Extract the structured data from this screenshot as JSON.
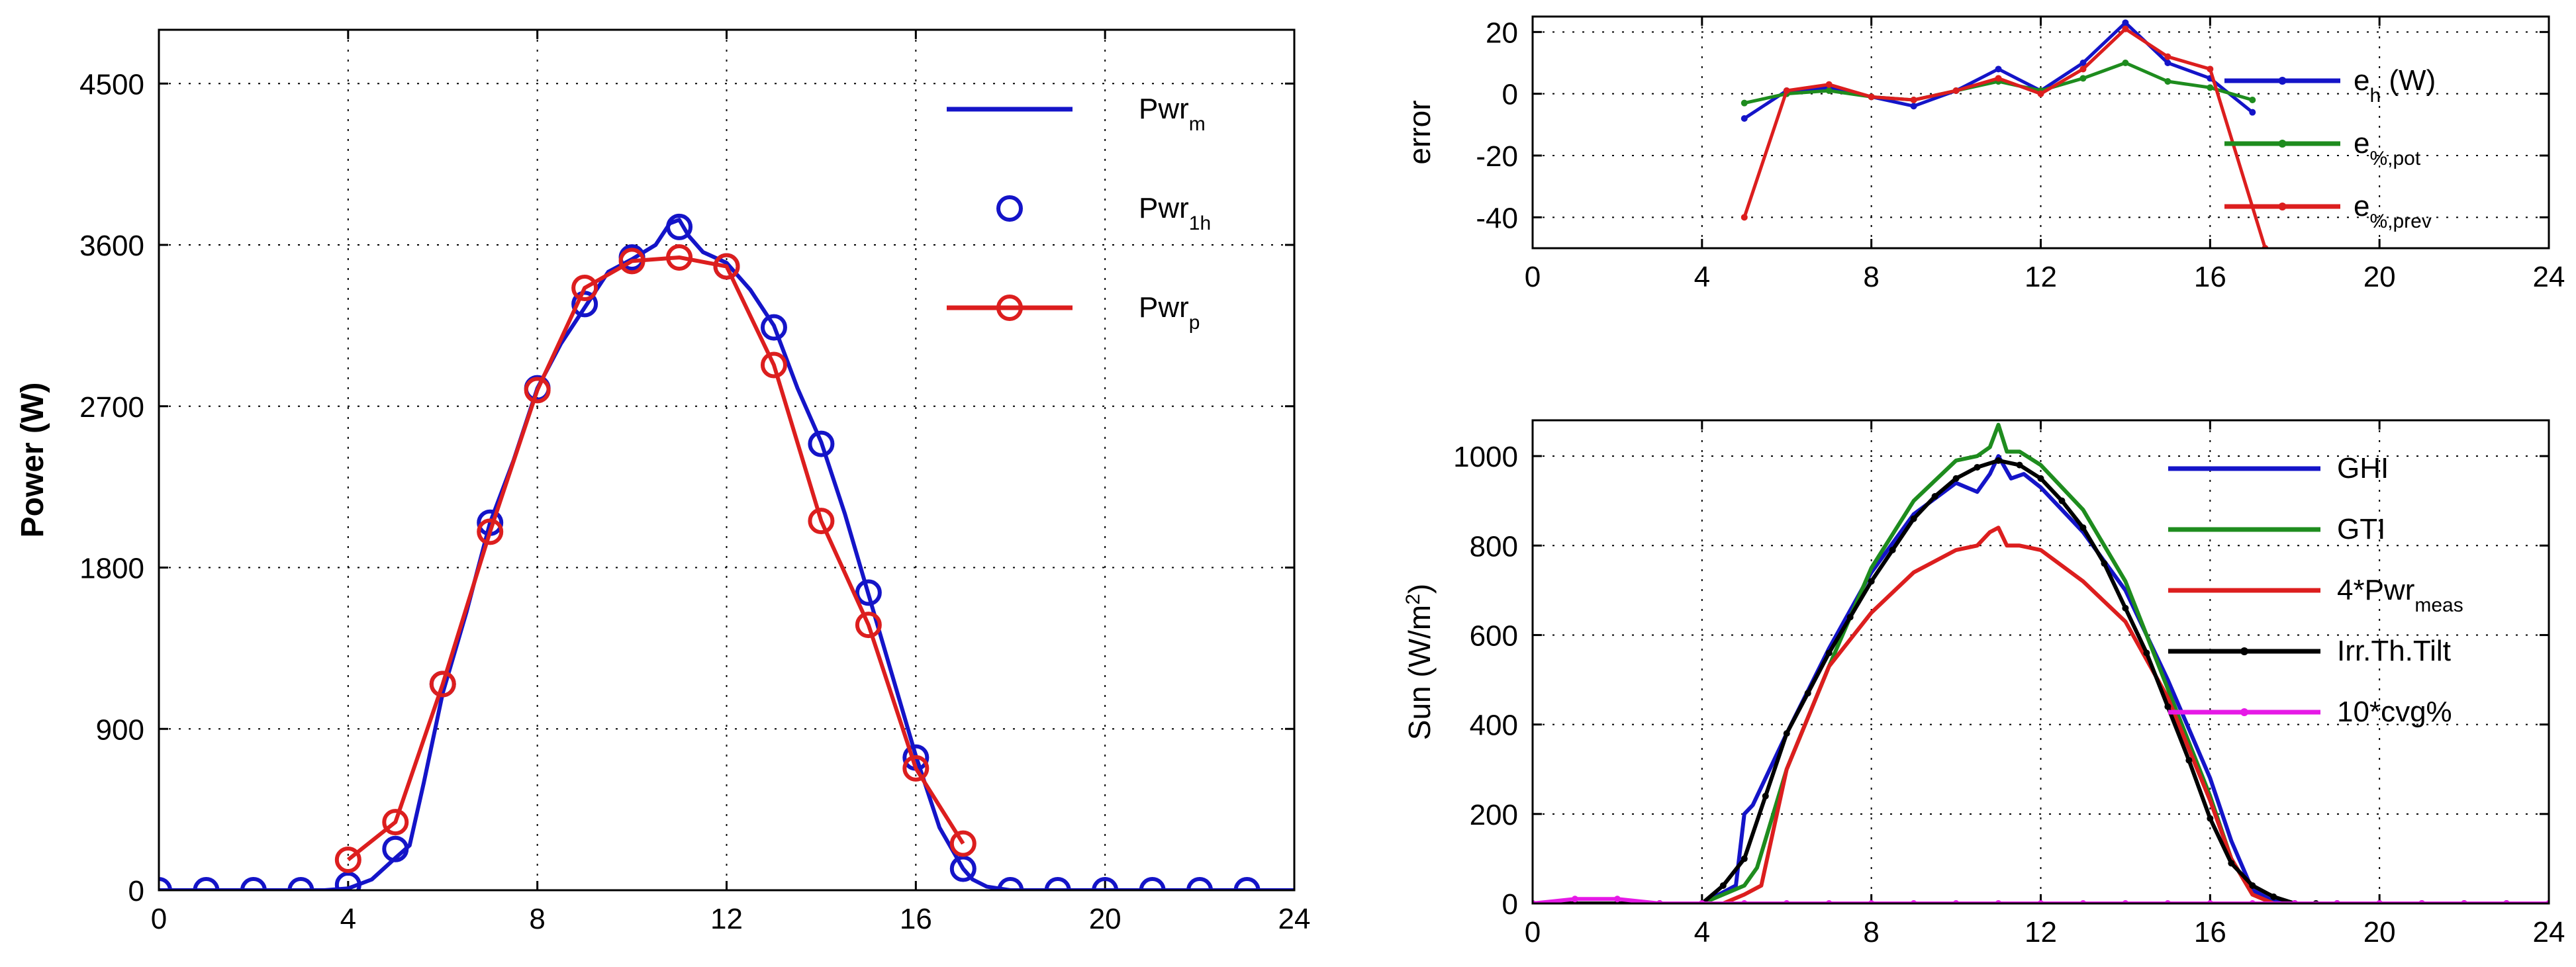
{
  "chart_data": [
    {
      "type": "line",
      "name": "power",
      "title": "",
      "xlabel": "",
      "ylabel": "Power (W)",
      "xlim": [
        0,
        24
      ],
      "ylim": [
        0,
        4800
      ],
      "xticks": [
        0,
        4,
        8,
        12,
        16,
        20,
        24
      ],
      "yticks": [
        0,
        900,
        1800,
        2700,
        3600,
        4500
      ],
      "grid": true,
      "legend_position": "top-right",
      "series": [
        {
          "name": "Pwr_m",
          "label": "Pwr",
          "sub": "m",
          "color": "#1414c8",
          "style": "line",
          "x": [
            0,
            3.5,
            4.0,
            4.5,
            5.0,
            5.3,
            5.6,
            6.0,
            6.5,
            7.0,
            7.5,
            8.0,
            8.5,
            9.0,
            9.5,
            10.0,
            10.5,
            10.8,
            11.0,
            11.2,
            11.5,
            12.0,
            12.5,
            13.0,
            13.5,
            14.0,
            14.5,
            15.0,
            15.5,
            16.0,
            16.5,
            17.0,
            17.2,
            17.5,
            18.0,
            24
          ],
          "y": [
            0,
            0,
            10,
            60,
            180,
            250,
            600,
            1100,
            1550,
            2050,
            2400,
            2800,
            3050,
            3250,
            3450,
            3520,
            3600,
            3720,
            3740,
            3650,
            3560,
            3500,
            3350,
            3150,
            2800,
            2500,
            2100,
            1650,
            1200,
            750,
            350,
            120,
            60,
            20,
            0,
            0
          ]
        },
        {
          "name": "Pwr_1h",
          "label": "Pwr",
          "sub": "1h",
          "color": "#1414c8",
          "style": "marker",
          "x": [
            0,
            1,
            2,
            3,
            4,
            5,
            6,
            7,
            8,
            9,
            10,
            11,
            12,
            13,
            14,
            15,
            16,
            17,
            18,
            19,
            20,
            21,
            22,
            23
          ],
          "y": [
            0,
            0,
            0,
            0,
            30,
            230,
            1150,
            2050,
            2800,
            3270,
            3530,
            3700,
            3480,
            3140,
            2490,
            1660,
            740,
            120,
            0,
            0,
            0,
            0,
            0,
            0
          ]
        },
        {
          "name": "Pwr_p",
          "label": "Pwr",
          "sub": "p",
          "color": "#dc1e1e",
          "style": "line-marker",
          "x": [
            4,
            5,
            6,
            7,
            8,
            9,
            10,
            11,
            12,
            13,
            14,
            15,
            16,
            17
          ],
          "y": [
            170,
            380,
            1150,
            2000,
            2790,
            3360,
            3510,
            3530,
            3480,
            2930,
            2060,
            1480,
            680,
            260
          ]
        }
      ]
    },
    {
      "type": "line",
      "name": "error",
      "title": "",
      "xlabel": "",
      "ylabel": "error",
      "xlim": [
        0,
        24
      ],
      "ylim": [
        -50,
        25
      ],
      "xticks": [
        0,
        4,
        8,
        12,
        16,
        20,
        24
      ],
      "yticks": [
        20,
        0,
        -20,
        -40
      ],
      "grid": true,
      "legend_position": "right",
      "series": [
        {
          "name": "e_h (W)",
          "label": "e",
          "sub": "h",
          "suffix": " (W)",
          "color": "#1414c8",
          "x": [
            5,
            6,
            7,
            8,
            9,
            10,
            11,
            12,
            13,
            14,
            15,
            16,
            17
          ],
          "y": [
            -8,
            1,
            2,
            -1,
            -4,
            1,
            8,
            1,
            10,
            23,
            10,
            5,
            -6
          ]
        },
        {
          "name": "e_%,pot",
          "label": "e",
          "sub": "%,pot",
          "suffix": "",
          "color": "#1e8c1e",
          "x": [
            5,
            6,
            7,
            8,
            9,
            10,
            11,
            12,
            13,
            14,
            15,
            16,
            17
          ],
          "y": [
            -3,
            0,
            1,
            -1,
            -2,
            1,
            4,
            1,
            5,
            10,
            4,
            2,
            -2
          ]
        },
        {
          "name": "e_%,prev",
          "label": "e",
          "sub": "%,prev",
          "suffix": "",
          "color": "#dc1e1e",
          "x": [
            5,
            6,
            7,
            8,
            9,
            10,
            11,
            12,
            13,
            14,
            15,
            16,
            17.3
          ],
          "y": [
            -40,
            1,
            3,
            -1,
            -2,
            1,
            5,
            0,
            8,
            21,
            12,
            8,
            -50
          ]
        }
      ]
    },
    {
      "type": "line",
      "name": "sun",
      "title": "",
      "xlabel": "",
      "ylabel": "Sun (W/m",
      "ylabel_sup": "2",
      "ylabel_end": ")",
      "xlim": [
        0,
        24
      ],
      "ylim": [
        0,
        1080
      ],
      "xticks": [
        0,
        4,
        8,
        12,
        16,
        20,
        24
      ],
      "yticks": [
        0,
        200,
        400,
        600,
        800,
        1000
      ],
      "grid": true,
      "legend_position": "right",
      "series": [
        {
          "name": "GHI",
          "label": "GHI",
          "sub": "",
          "color": "#1414c8",
          "x": [
            0,
            4.0,
            4.8,
            5.0,
            5.2,
            6.0,
            7.0,
            8.0,
            9.0,
            10.0,
            10.5,
            10.8,
            11.0,
            11.3,
            11.6,
            12.0,
            13.0,
            14.0,
            15.0,
            16.0,
            16.5,
            17.0,
            17.5,
            18.0,
            24
          ],
          "y": [
            0,
            0,
            40,
            200,
            220,
            380,
            570,
            740,
            870,
            940,
            920,
            960,
            1000,
            950,
            960,
            930,
            830,
            700,
            500,
            280,
            140,
            30,
            5,
            0,
            0
          ]
        },
        {
          "name": "GTI",
          "label": "GTI",
          "sub": "",
          "color": "#1e8c1e",
          "x": [
            0,
            4.0,
            5.0,
            5.3,
            6.0,
            7.0,
            8.0,
            9.0,
            10.0,
            10.5,
            10.8,
            11.0,
            11.2,
            11.5,
            12.0,
            13.0,
            14.0,
            15.0,
            16.0,
            16.5,
            17.0,
            17.5,
            24
          ],
          "y": [
            0,
            0,
            40,
            80,
            300,
            530,
            750,
            900,
            990,
            1000,
            1020,
            1070,
            1010,
            1010,
            980,
            880,
            720,
            480,
            240,
            100,
            20,
            0,
            0
          ]
        },
        {
          "name": "4*Pwr_meas",
          "label": "4*Pwr",
          "sub": "meas",
          "color": "#dc1e1e",
          "x": [
            0,
            4.5,
            5.0,
            5.4,
            6.0,
            7.0,
            8.0,
            9.0,
            10.0,
            10.5,
            10.8,
            11.0,
            11.2,
            11.5,
            12.0,
            13.0,
            14.0,
            15.0,
            16.0,
            16.5,
            17.0,
            17.5,
            24
          ],
          "y": [
            0,
            0,
            20,
            40,
            300,
            530,
            650,
            740,
            790,
            800,
            830,
            840,
            800,
            800,
            790,
            720,
            630,
            460,
            230,
            100,
            20,
            0,
            0
          ]
        },
        {
          "name": "Irr.Th.Tilt",
          "label": "Irr.Th.Tilt",
          "sub": "",
          "color": "#000000",
          "x": [
            0,
            1,
            2,
            3,
            4,
            4.5,
            5,
            5.5,
            6,
            6.5,
            7,
            7.5,
            8,
            8.5,
            9,
            9.5,
            10,
            10.5,
            11,
            11.5,
            12,
            12.5,
            13,
            13.5,
            14,
            14.5,
            15,
            15.5,
            16,
            16.5,
            17,
            17.5,
            18,
            18.5,
            19,
            20,
            21,
            22,
            23
          ],
          "y": [
            0,
            0,
            0,
            0,
            0,
            40,
            100,
            240,
            380,
            470,
            560,
            640,
            720,
            790,
            860,
            910,
            950,
            975,
            990,
            980,
            950,
            900,
            840,
            760,
            660,
            560,
            440,
            320,
            190,
            90,
            40,
            15,
            0,
            0,
            0,
            0,
            0,
            0,
            0
          ]
        },
        {
          "name": "10*cvg%",
          "label": "10*cvg%",
          "sub": "",
          "color": "#e619e6",
          "x": [
            0,
            1,
            2,
            3,
            4,
            5,
            6,
            7,
            8,
            9,
            10,
            11,
            12,
            13,
            14,
            15,
            16,
            17,
            18,
            19,
            20,
            21,
            22,
            23,
            24
          ],
          "y": [
            0,
            10,
            10,
            0,
            0,
            0,
            0,
            0,
            0,
            0,
            0,
            0,
            0,
            0,
            0,
            0,
            0,
            0,
            0,
            0,
            0,
            0,
            0,
            0,
            0
          ]
        }
      ]
    }
  ]
}
